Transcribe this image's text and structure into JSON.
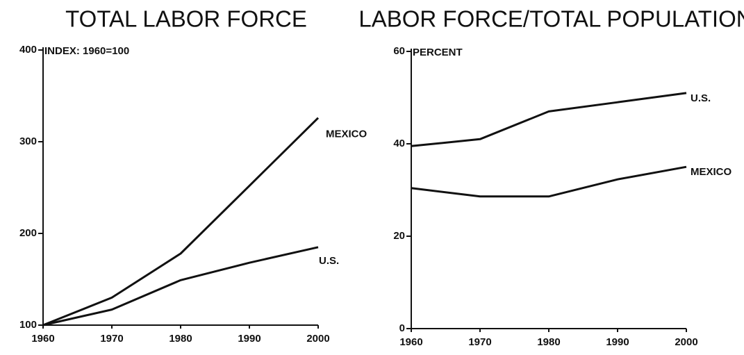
{
  "chart_data": [
    {
      "type": "line",
      "title": "TOTAL LABOR FORCE",
      "y_label": "INDEX: 1960=100",
      "x": [
        1960,
        1970,
        1980,
        1990,
        2000
      ],
      "xlim": [
        1960,
        2000
      ],
      "xticks": [
        1960,
        1970,
        1980,
        1990,
        2000
      ],
      "ylim": [
        100,
        400
      ],
      "yticks": [
        100,
        200,
        300,
        400
      ],
      "series": [
        {
          "name": "MEXICO",
          "color": "#111111",
          "values": [
            100,
            130,
            178,
            252,
            326
          ]
        },
        {
          "name": "U.S.",
          "color": "#111111",
          "values": [
            100,
            117,
            149,
            168,
            185
          ]
        }
      ]
    },
    {
      "type": "line",
      "title": "LABOR FORCE/TOTAL POPULATION",
      "y_label": "PERCENT",
      "x": [
        1960,
        1970,
        1980,
        1990,
        2000
      ],
      "xlim": [
        1960,
        2000
      ],
      "xticks": [
        1960,
        1970,
        1980,
        1990,
        2000
      ],
      "ylim": [
        0,
        60
      ],
      "yticks": [
        0,
        20,
        40,
        60
      ],
      "series": [
        {
          "name": "U.S.",
          "color": "#111111",
          "values": [
            39.5,
            41,
            47,
            49,
            51
          ]
        },
        {
          "name": "MEXICO",
          "color": "#111111",
          "values": [
            30.4,
            28.6,
            28.6,
            32.3,
            35
          ]
        }
      ]
    }
  ]
}
